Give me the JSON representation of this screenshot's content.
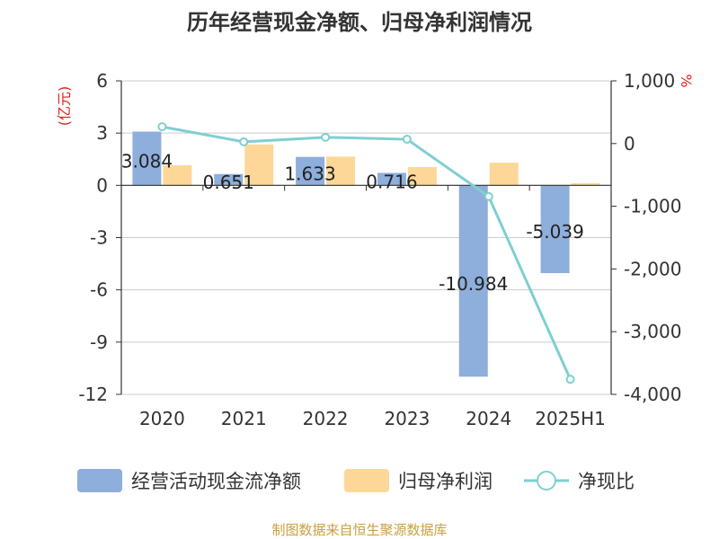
{
  "chart_data": {
    "type": "bar",
    "title": "历年经营现金净额、归母净利润情况",
    "ylabel": "(亿元)",
    "y2label": "%",
    "categories": [
      "2020",
      "2021",
      "2022",
      "2023",
      "2024",
      "2025H1"
    ],
    "ylim": [
      -12,
      6
    ],
    "yticks": [
      6,
      3,
      0,
      -3,
      -6,
      -9,
      -12
    ],
    "y2lim": [
      -4000,
      1000
    ],
    "y2ticks": [
      1000,
      0,
      -1000,
      -2000,
      -3000,
      -4000
    ],
    "y2tick_labels": [
      "1,000",
      "0",
      "-1,000",
      "-2,000",
      "-3,000",
      "-4,000"
    ],
    "grid": true,
    "legend_position": "bottom",
    "series": [
      {
        "name": "经营活动现金流净额",
        "kind": "bar",
        "axis": "left",
        "color": "#8eaedb",
        "values": [
          3.084,
          0.651,
          1.633,
          0.716,
          -10.984,
          -5.039
        ],
        "labels": [
          "3.084",
          "0.651",
          "1.633",
          "0.716",
          "-10.984",
          "-5.039"
        ]
      },
      {
        "name": "归母净利润",
        "kind": "bar",
        "axis": "left",
        "color": "#fdd797",
        "values": [
          1.15,
          2.35,
          1.65,
          1.05,
          1.3,
          0.12
        ]
      },
      {
        "name": "净现比",
        "kind": "line",
        "axis": "right",
        "color": "#7fcfd1",
        "values": [
          268,
          28,
          100,
          68,
          -845,
          -3760
        ]
      }
    ],
    "source": "制图数据来自恒生聚源数据库",
    "colors": {
      "axis": "#333333",
      "grid": "#cccccc",
      "ylabel": "#e02020",
      "source": "#c8a040"
    }
  }
}
